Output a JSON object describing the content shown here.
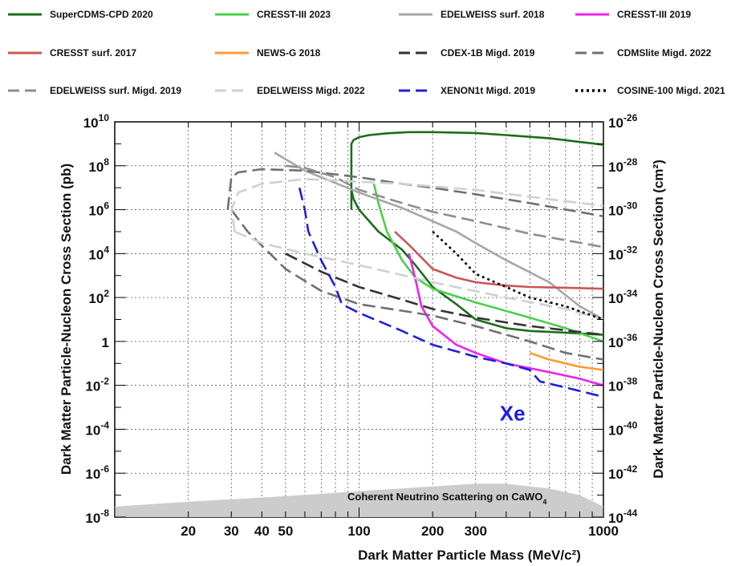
{
  "chart_data": {
    "type": "line",
    "xlabel": "Dark Matter Particle Mass (MeV/c²)",
    "ylabel": "Dark Matter Particle-Nucleon Cross Section (pb)",
    "y2label": "Dark Matter Particle-Nucleon Cross Section (cm²)",
    "xscale": "log",
    "yscale": "log",
    "xlim": [
      10,
      1000
    ],
    "ylim": [
      1e-08,
      10000000000.0
    ],
    "y2lim": [
      1e-44,
      1e-26
    ],
    "grid": true,
    "legend_position": "top",
    "x_tick_labels": [
      {
        "value": 20,
        "label": "20"
      },
      {
        "value": 30,
        "label": "30"
      },
      {
        "value": 40,
        "label": "40"
      },
      {
        "value": 50,
        "label": "50"
      },
      {
        "value": 100,
        "label": "100"
      },
      {
        "value": 200,
        "label": "200"
      },
      {
        "value": 300,
        "label": "300"
      },
      {
        "value": 1000,
        "label": "1000"
      }
    ],
    "y_tick_labels": [
      {
        "value": 10000000000.0,
        "base": "10",
        "exp": "10"
      },
      {
        "value": 100000000.0,
        "base": "10",
        "exp": "8"
      },
      {
        "value": 1000000.0,
        "base": "10",
        "exp": "6"
      },
      {
        "value": 10000.0,
        "base": "10",
        "exp": "4"
      },
      {
        "value": 100.0,
        "base": "10",
        "exp": "2"
      },
      {
        "value": 1,
        "base": "1",
        "exp": ""
      },
      {
        "value": 0.01,
        "base": "10",
        "exp": "-2"
      },
      {
        "value": 0.0001,
        "base": "10",
        "exp": "-4"
      },
      {
        "value": 1e-06,
        "base": "10",
        "exp": "-6"
      },
      {
        "value": 1e-08,
        "base": "10",
        "exp": "-8"
      }
    ],
    "y2_tick_labels": [
      {
        "value": 10000000000.0,
        "base": "10",
        "exp": "-26"
      },
      {
        "value": 100000000.0,
        "base": "10",
        "exp": "-28"
      },
      {
        "value": 1000000.0,
        "base": "10",
        "exp": "-30"
      },
      {
        "value": 10000.0,
        "base": "10",
        "exp": "-32"
      },
      {
        "value": 100.0,
        "base": "10",
        "exp": "-34"
      },
      {
        "value": 1,
        "base": "10",
        "exp": "-36"
      },
      {
        "value": 0.01,
        "base": "10",
        "exp": "-38"
      },
      {
        "value": 0.0001,
        "base": "10",
        "exp": "-40"
      },
      {
        "value": 1e-06,
        "base": "10",
        "exp": "-42"
      },
      {
        "value": 1e-08,
        "base": "10",
        "exp": "-44"
      }
    ],
    "annotations": {
      "xe_label": {
        "text": "Xe",
        "color": "#1f1fdd",
        "x": 300,
        "y": 0.0003
      },
      "neutrino_label": {
        "text_main": "Coherent Neutrino Scattering on CaWO",
        "text_sub": "4",
        "x": 120,
        "y": 2e-08
      }
    },
    "neutrino_floor": {
      "color": "#cccccc",
      "x": [
        10,
        20,
        50,
        100,
        200,
        300,
        400,
        600,
        800,
        1000
      ],
      "y": [
        3e-08,
        5e-08,
        9e-08,
        1.5e-07,
        2.5e-07,
        3.3e-07,
        3.3e-07,
        2e-07,
        1e-07,
        3e-08
      ]
    },
    "series": [
      {
        "name": "SuperCDMS-CPD 2020",
        "color": "#1a6e1a",
        "dash": "solid",
        "x": [
          93,
          93,
          95,
          100,
          110,
          130,
          160,
          200,
          300,
          400,
          600,
          1000
        ],
        "y": [
          1000000.0,
          1000000000.0,
          1500000000.0,
          2000000000.0,
          2500000000.0,
          3000000000.0,
          3400000000.0,
          3400000000.0,
          3100000000.0,
          2500000000.0,
          1800000000.0,
          900000000.0
        ]
      },
      {
        "name": "SuperCDMS-CPD 2020 (low)",
        "color": "#1a6e1a",
        "dash": "solid",
        "x": [
          93,
          95,
          100,
          120,
          150,
          170,
          200,
          250,
          300,
          400,
          500,
          700,
          1000
        ],
        "y": [
          8000000.0,
          3000000.0,
          1000000.0,
          100000.0,
          15000.0,
          3000.0,
          300,
          50,
          10,
          4,
          3,
          2.5,
          2
        ]
      },
      {
        "name": "CRESST-III 2023",
        "color": "#4ad04a",
        "dash": "solid",
        "x": [
          115,
          120,
          130,
          150,
          170,
          200,
          300,
          500,
          700,
          1000
        ],
        "y": [
          15000000.0,
          2000000.0,
          100000.0,
          5000.0,
          800,
          250,
          60,
          12,
          4,
          1
        ]
      },
      {
        "name": "EDELWEISS surf. 2018",
        "color": "#a6a6a6",
        "dash": "solid",
        "x": [
          45,
          60,
          100,
          150,
          200,
          250,
          300,
          400,
          600,
          800,
          1000
        ],
        "y": [
          400000000.0,
          60000000.0,
          6000000.0,
          1200000.0,
          300000.0,
          100000.0,
          30000.0,
          5000.0,
          500,
          40,
          10
        ]
      },
      {
        "name": "CRESST-III 2019",
        "color": "#ee22ee",
        "dash": "solid",
        "x": [
          160,
          170,
          180,
          200,
          250,
          300,
          400,
          600,
          800,
          1000
        ],
        "y": [
          10000.0,
          700,
          40,
          5,
          0.7,
          0.3,
          0.1,
          0.04,
          0.02,
          0.01
        ]
      },
      {
        "name": "CRESST surf. 2017",
        "color": "#cc5555",
        "dash": "solid",
        "x": [
          140,
          160,
          200,
          250,
          300,
          400,
          500,
          700,
          1000
        ],
        "y": [
          100000.0,
          25000.0,
          2000.0,
          800,
          500,
          350,
          300,
          280,
          250
        ]
      },
      {
        "name": "NEWS-G 2018",
        "color": "#ff9933",
        "dash": "solid",
        "x": [
          500,
          600,
          700,
          800,
          1000
        ],
        "y": [
          0.3,
          0.15,
          0.1,
          0.07,
          0.05
        ]
      },
      {
        "name": "CDEX-1B Migd. 2019",
        "color": "#333333",
        "dash": "longdash",
        "x": [
          50,
          70,
          100,
          150,
          200,
          300,
          500,
          1000
        ],
        "y": [
          10000.0,
          1500.0,
          300,
          80,
          30,
          12,
          5,
          2
        ]
      },
      {
        "name": "CDMSlite Migd. 2022",
        "color": "#707070",
        "dash": "longdash",
        "x": [
          29,
          30,
          32,
          40,
          60,
          100,
          150,
          200,
          300,
          500,
          1000
        ],
        "y": [
          1000000.0,
          30000000.0,
          50000000.0,
          70000000.0,
          60000000.0,
          30000000.0,
          15000000.0,
          10000000.0,
          5000000.0,
          2000000.0,
          500000.0
        ]
      },
      {
        "name": "CDMSlite Migd. 2022 (low)",
        "color": "#707070",
        "dash": "longdash",
        "x": [
          30,
          35,
          50,
          70,
          100,
          150,
          200,
          300,
          500,
          700,
          1000
        ],
        "y": [
          1000000.0,
          100000.0,
          2000.0,
          200,
          50,
          25,
          15,
          5,
          1,
          0.3,
          0.15
        ]
      },
      {
        "name": "EDELWEISS surf. Migd. 2019",
        "color": "#8e8e8e",
        "dash": "longdash",
        "x": [
          50,
          60,
          80,
          100,
          150,
          200,
          300,
          500,
          1000
        ],
        "y": [
          100000000.0,
          80000000.0,
          30000000.0,
          8000000.0,
          2000000.0,
          800000.0,
          300000.0,
          80000.0,
          20000.0
        ]
      },
      {
        "name": "EDELWEISS Migd. 2022",
        "color": "#d0d0d0",
        "dash": "longdash",
        "x": [
          31,
          30,
          32,
          40,
          60,
          90,
          150,
          300,
          600,
          1000
        ],
        "y": [
          100000.0,
          1000000.0,
          6000000.0,
          15000000.0,
          25000000.0,
          20000000.0,
          15000000.0,
          8000000.0,
          3000000.0,
          1500000.0
        ]
      },
      {
        "name": "EDELWEISS Migd. 2022 (low)",
        "color": "#d0d0d0",
        "dash": "longdash",
        "x": [
          31,
          40,
          60,
          100,
          200,
          400,
          700,
          1000
        ],
        "y": [
          100000.0,
          30000.0,
          10000.0,
          3000.0,
          500,
          100,
          30,
          10
        ]
      },
      {
        "name": "XENON1t Migd. 2019",
        "color": "#1f1fdd",
        "dash": "longdash",
        "x": [
          57,
          60,
          62,
          70,
          80,
          85,
          100,
          150,
          200,
          300,
          400,
          500,
          550,
          700,
          1000
        ],
        "y": [
          10000000.0,
          1000000.0,
          100000.0,
          5000.0,
          300,
          50,
          20,
          3,
          0.7,
          0.2,
          0.1,
          0.05,
          0.015,
          0.008,
          0.003
        ]
      },
      {
        "name": "COSINE-100 Migd. 2021",
        "color": "#000000",
        "dash": "dotted",
        "x": [
          200,
          250,
          300,
          400,
          500,
          700,
          1000
        ],
        "y": [
          100000.0,
          10000.0,
          1200.0,
          300,
          100,
          40,
          10
        ]
      }
    ],
    "legend": [
      {
        "label": "SuperCDMS-CPD 2020",
        "color": "#1a6e1a",
        "dash": "solid"
      },
      {
        "label": "CRESST-III 2023",
        "color": "#4ad04a",
        "dash": "solid"
      },
      {
        "label": "EDELWEISS surf. 2018",
        "color": "#a6a6a6",
        "dash": "solid"
      },
      {
        "label": "CRESST-III 2019",
        "color": "#ee22ee",
        "dash": "solid"
      },
      {
        "label": "CRESST surf. 2017",
        "color": "#cc5555",
        "dash": "solid"
      },
      {
        "label": "NEWS-G 2018",
        "color": "#ff9933",
        "dash": "solid"
      },
      {
        "label": "CDEX-1B Migd. 2019",
        "color": "#333333",
        "dash": "longdash"
      },
      {
        "label": "CDMSlite Migd. 2022",
        "color": "#707070",
        "dash": "longdash"
      },
      {
        "label": "EDELWEISS surf. Migd. 2019",
        "color": "#8e8e8e",
        "dash": "longdash"
      },
      {
        "label": "EDELWEISS Migd. 2022",
        "color": "#d0d0d0",
        "dash": "longdash"
      },
      {
        "label": "XENON1t Migd. 2019",
        "color": "#1f1fdd",
        "dash": "longdash"
      },
      {
        "label": "COSINE-100 Migd. 2021",
        "color": "#000000",
        "dash": "dotted"
      }
    ]
  }
}
